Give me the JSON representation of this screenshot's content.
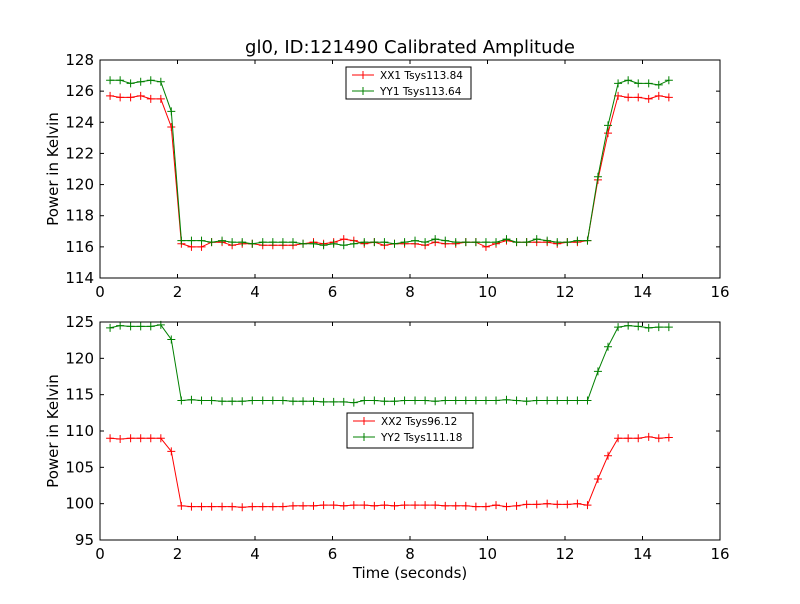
{
  "figure": {
    "title": "gl0, ID:121490 Calibrated Amplitude",
    "xlabel": "Time (seconds)"
  },
  "chart_data": [
    {
      "type": "line",
      "title": "gl0, ID:121490 Calibrated Amplitude",
      "xlabel": "",
      "ylabel": "Power in Kelvin",
      "xlim": [
        0,
        16
      ],
      "ylim": [
        114,
        128
      ],
      "xticks": [
        0,
        2,
        4,
        6,
        8,
        10,
        12,
        14,
        16
      ],
      "yticks": [
        114,
        116,
        118,
        120,
        122,
        124,
        126,
        128
      ],
      "grid": false,
      "legend": "top-center",
      "x": [
        0.26,
        0.52,
        0.79,
        1.05,
        1.31,
        1.57,
        1.84,
        2.1,
        2.36,
        2.62,
        2.88,
        3.15,
        3.41,
        3.67,
        3.93,
        4.2,
        4.46,
        4.72,
        4.98,
        5.24,
        5.51,
        5.77,
        6.03,
        6.29,
        6.55,
        6.82,
        7.08,
        7.34,
        7.6,
        7.86,
        8.13,
        8.39,
        8.65,
        8.91,
        9.18,
        9.44,
        9.7,
        9.96,
        10.22,
        10.49,
        10.75,
        11.01,
        11.27,
        11.54,
        11.8,
        12.06,
        12.32,
        12.58,
        12.85,
        13.11,
        13.37,
        13.63,
        13.89,
        14.16,
        14.42,
        14.68
      ],
      "series": [
        {
          "name": "XX1 Tsys113.84",
          "color": "#ff0000",
          "values": [
            125.7,
            125.6,
            125.6,
            125.7,
            125.5,
            125.5,
            123.7,
            116.2,
            116.0,
            116.0,
            116.3,
            116.3,
            116.1,
            116.2,
            116.2,
            116.1,
            116.1,
            116.1,
            116.1,
            116.2,
            116.3,
            116.2,
            116.3,
            116.5,
            116.4,
            116.2,
            116.3,
            116.1,
            116.2,
            116.2,
            116.2,
            116.1,
            116.3,
            116.2,
            116.2,
            116.3,
            116.3,
            116.0,
            116.2,
            116.4,
            116.3,
            116.3,
            116.3,
            116.3,
            116.2,
            116.3,
            116.3,
            116.4,
            120.3,
            123.3,
            125.7,
            125.6,
            125.6,
            125.5,
            125.7,
            125.6
          ]
        },
        {
          "name": "YY1 Tsys113.64",
          "color": "#008000",
          "values": [
            126.7,
            126.7,
            126.5,
            126.6,
            126.7,
            126.6,
            124.7,
            116.4,
            116.4,
            116.4,
            116.3,
            116.4,
            116.3,
            116.3,
            116.2,
            116.3,
            116.3,
            116.3,
            116.3,
            116.2,
            116.2,
            116.1,
            116.2,
            116.1,
            116.2,
            116.3,
            116.3,
            116.3,
            116.2,
            116.3,
            116.4,
            116.3,
            116.5,
            116.4,
            116.3,
            116.3,
            116.3,
            116.3,
            116.3,
            116.5,
            116.3,
            116.3,
            116.5,
            116.4,
            116.3,
            116.3,
            116.4,
            116.4,
            120.5,
            123.8,
            126.5,
            126.7,
            126.5,
            126.5,
            126.4,
            126.7
          ]
        }
      ]
    },
    {
      "type": "line",
      "title": "",
      "xlabel": "Time (seconds)",
      "ylabel": "Power in Kelvin",
      "xlim": [
        0,
        16
      ],
      "ylim": [
        95,
        125
      ],
      "xticks": [
        0,
        2,
        4,
        6,
        8,
        10,
        12,
        14,
        16
      ],
      "yticks": [
        95,
        100,
        105,
        110,
        115,
        120,
        125
      ],
      "grid": false,
      "legend": "center",
      "x": [
        0.26,
        0.52,
        0.79,
        1.05,
        1.31,
        1.57,
        1.84,
        2.1,
        2.36,
        2.62,
        2.88,
        3.15,
        3.41,
        3.67,
        3.93,
        4.2,
        4.46,
        4.72,
        4.98,
        5.24,
        5.51,
        5.77,
        6.03,
        6.29,
        6.55,
        6.82,
        7.08,
        7.34,
        7.6,
        7.86,
        8.13,
        8.39,
        8.65,
        8.91,
        9.18,
        9.44,
        9.7,
        9.96,
        10.22,
        10.49,
        10.75,
        11.01,
        11.27,
        11.54,
        11.8,
        12.06,
        12.32,
        12.58,
        12.85,
        13.11,
        13.37,
        13.63,
        13.89,
        14.16,
        14.42,
        14.68
      ],
      "series": [
        {
          "name": "XX2 Tsys96.12",
          "color": "#ff0000",
          "values": [
            109.0,
            108.9,
            109.0,
            109.0,
            109.0,
            109.0,
            107.2,
            99.7,
            99.6,
            99.6,
            99.6,
            99.6,
            99.6,
            99.5,
            99.6,
            99.6,
            99.6,
            99.6,
            99.7,
            99.7,
            99.7,
            99.8,
            99.8,
            99.7,
            99.8,
            99.8,
            99.7,
            99.8,
            99.7,
            99.8,
            99.8,
            99.8,
            99.8,
            99.7,
            99.7,
            99.7,
            99.6,
            99.6,
            99.8,
            99.6,
            99.7,
            99.9,
            99.9,
            100.0,
            99.9,
            99.9,
            100.0,
            99.8,
            103.4,
            106.6,
            109.0,
            109.0,
            109.0,
            109.2,
            109.0,
            109.1
          ]
        },
        {
          "name": "YY2 Tsys111.18",
          "color": "#008000",
          "values": [
            124.2,
            124.5,
            124.4,
            124.4,
            124.4,
            124.6,
            122.6,
            114.2,
            114.3,
            114.2,
            114.2,
            114.1,
            114.1,
            114.1,
            114.2,
            114.2,
            114.2,
            114.2,
            114.1,
            114.1,
            114.1,
            114.0,
            114.0,
            114.0,
            113.9,
            114.2,
            114.2,
            114.1,
            114.1,
            114.2,
            114.2,
            114.2,
            114.1,
            114.2,
            114.2,
            114.2,
            114.2,
            114.2,
            114.2,
            114.3,
            114.2,
            114.1,
            114.2,
            114.2,
            114.2,
            114.2,
            114.2,
            114.2,
            118.2,
            121.6,
            124.3,
            124.5,
            124.4,
            124.2,
            124.3,
            124.3
          ]
        }
      ]
    }
  ]
}
